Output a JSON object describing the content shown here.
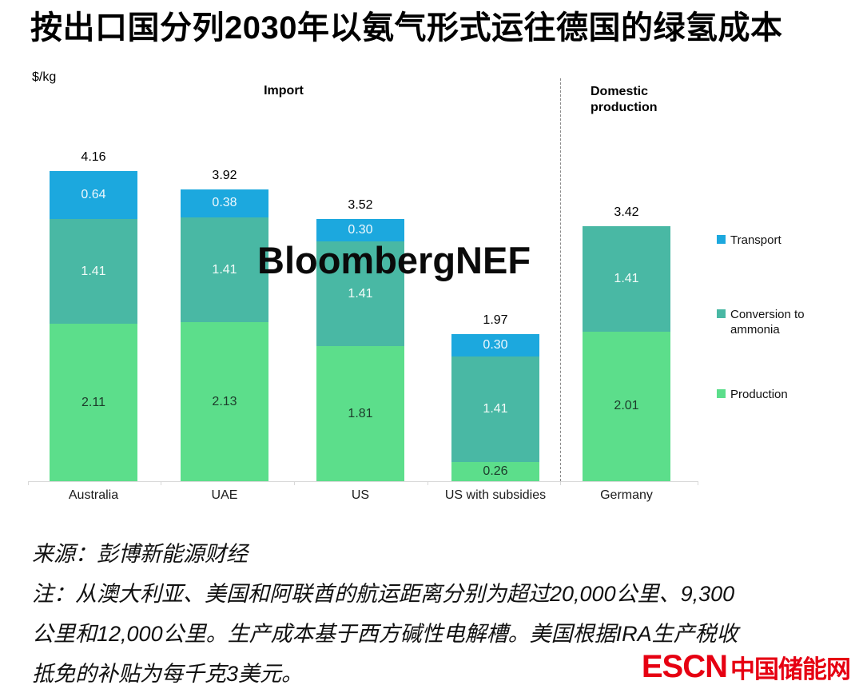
{
  "title": "按出口国分列2030年以氨气形式运往德国的绿氢成本",
  "chart_data": {
    "type": "bar",
    "stacked": true,
    "ylabel": "$/kg",
    "ylim": [
      0,
      4.5
    ],
    "grid": false,
    "legend_position": "right",
    "watermark": "BloombergNEF",
    "section_labels": {
      "import": "Import",
      "domestic": "Domestic production"
    },
    "categories": [
      "Australia",
      "UAE",
      "US",
      "US with subsidies",
      "Germany"
    ],
    "series": [
      {
        "name": "Production",
        "color": "#5CDE8B",
        "label_color": "#1c3b2b",
        "values": [
          2.11,
          2.13,
          1.81,
          0.26,
          2.01
        ]
      },
      {
        "name": "Conversion to ammonia",
        "color": "#49B8A4",
        "label_color": "#f2fbf8",
        "values": [
          1.41,
          1.41,
          1.41,
          1.41,
          1.41
        ]
      },
      {
        "name": "Transport",
        "color": "#1CA8DE",
        "label_color": "#eef8fd",
        "values": [
          0.64,
          0.38,
          0.3,
          0.3,
          0
        ]
      }
    ],
    "totals": [
      4.16,
      3.92,
      3.52,
      1.97,
      3.42
    ],
    "legend": [
      {
        "label": "Transport",
        "color": "#1CA8DE"
      },
      {
        "label": "Conversion to ammonia",
        "color": "#49B8A4"
      },
      {
        "label": "Production",
        "color": "#5CDE8B"
      }
    ]
  },
  "footer": {
    "source": "来源：彭博新能源财经",
    "note_lines": [
      "注：从澳大利亚、美国和阿联酋的航运距离分别为超过20,000公里、9,300",
      "公里和12,000公里。生产成本基于西方碱性电解槽。美国根据IRA生产税收",
      "抵免的补贴为每千克3美元。"
    ],
    "logo": {
      "abbr": "ESCN",
      "name": "中国储能网",
      "color": "#E60012"
    }
  }
}
